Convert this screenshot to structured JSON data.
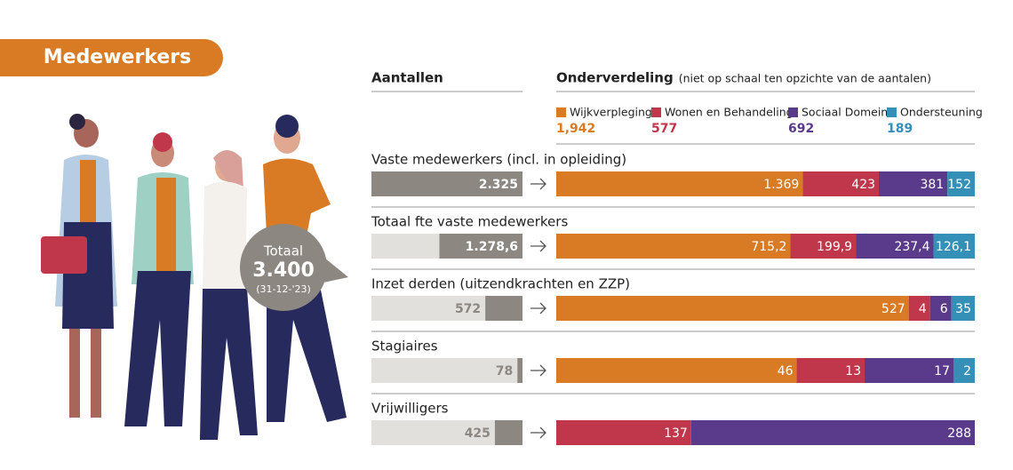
{
  "header": {
    "title": "Medewerkers"
  },
  "badge": {
    "label": "Totaal",
    "value": "3.400",
    "date": "(31-12-'23)"
  },
  "chart_data": {
    "type": "split-bar",
    "left_title": "Aantallen",
    "right_title": "Onderverdeling",
    "right_note": "(niet op schaal ten opzichte van de aantalen)",
    "categories": [
      "Vaste medewerkers (incl. in opleiding)",
      "Totaal fte vaste medewerkers",
      "Inzet derden (uitzendkrachten en ZZP)",
      "Stagiaires",
      "Vrijwilligers"
    ],
    "values": [
      2325,
      1278.6,
      572,
      78,
      425
    ],
    "value_labels": [
      "2.325",
      "1.278,6",
      "572",
      "78",
      "425"
    ],
    "color": "#8c8781",
    "series": [
      {
        "name": "Wijkverpleging",
        "color": "#d97b25",
        "total": 1942,
        "total_label": "1,942",
        "values": [
          1369,
          715.2,
          527,
          46,
          null
        ],
        "value_labels": [
          "1.369",
          "715,2",
          "527",
          "46",
          null
        ]
      },
      {
        "name": "Wonen en Behandeling",
        "color": "#c0364a",
        "total": 577,
        "total_label": "577",
        "values": [
          423,
          199.9,
          4,
          13,
          137
        ],
        "value_labels": [
          "423",
          "199,9",
          "4",
          "13",
          "137"
        ]
      },
      {
        "name": "Sociaal Domein",
        "color": "#5a3a8a",
        "total": 692,
        "total_label": "692",
        "values": [
          381,
          237.4,
          6,
          17,
          288
        ],
        "value_labels": [
          "381",
          "237,4",
          "6",
          "17",
          "288"
        ]
      },
      {
        "name": "Ondersteuning",
        "color": "#3590b8",
        "total": 189,
        "total_label": "189",
        "values": [
          152,
          126.1,
          35,
          2,
          null
        ],
        "value_labels": [
          "152",
          "126,1",
          "35",
          "2",
          null
        ]
      }
    ]
  }
}
